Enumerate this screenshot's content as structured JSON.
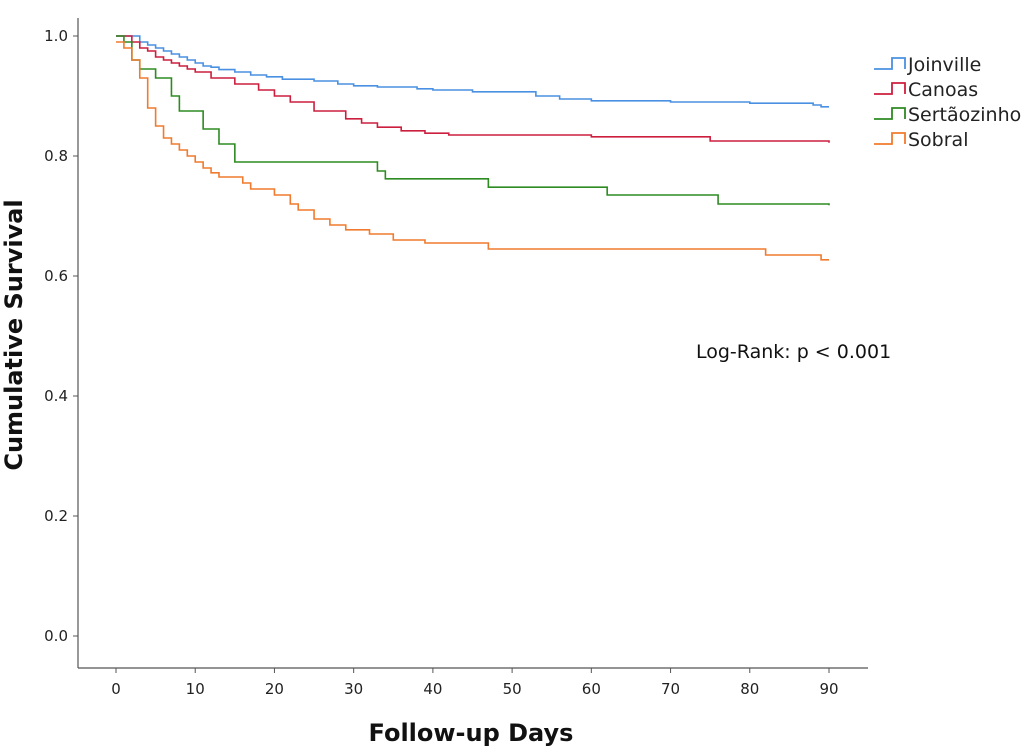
{
  "chart_data": {
    "type": "line",
    "step": true,
    "title": "",
    "xlabel": "Follow-up Days",
    "ylabel": "Cumulative Survival",
    "xlim": [
      -5,
      95
    ],
    "ylim": [
      0,
      1.0
    ],
    "xticks": [
      0,
      10,
      20,
      30,
      40,
      50,
      60,
      70,
      80,
      90
    ],
    "yticks": [
      0.0,
      0.2,
      0.4,
      0.6,
      0.8,
      1.0
    ],
    "xtick_labels": [
      "0",
      "10",
      "20",
      "30",
      "40",
      "50",
      "60",
      "70",
      "80",
      "90"
    ],
    "ytick_labels": [
      "0.0",
      "0.2",
      "0.4",
      "0.6",
      "0.8",
      "1.0"
    ],
    "legend_position": "top-right",
    "annotation": "Log-Rank:  p < 0.001",
    "series": [
      {
        "name": "Joinville",
        "color": "#4a90e2",
        "x": [
          0,
          3,
          4,
          5,
          6,
          7,
          8,
          9,
          10,
          11,
          12,
          13,
          15,
          17,
          19,
          21,
          25,
          28,
          30,
          33,
          38,
          40,
          45,
          53,
          56,
          60,
          70,
          80,
          88,
          89,
          90
        ],
        "y": [
          1.0,
          0.99,
          0.985,
          0.98,
          0.975,
          0.97,
          0.965,
          0.96,
          0.955,
          0.95,
          0.948,
          0.944,
          0.94,
          0.935,
          0.932,
          0.928,
          0.925,
          0.92,
          0.917,
          0.915,
          0.912,
          0.91,
          0.907,
          0.9,
          0.895,
          0.892,
          0.89,
          0.888,
          0.885,
          0.882,
          0.882
        ]
      },
      {
        "name": "Canoas",
        "color": "#cc1f3e",
        "x": [
          0,
          2,
          3,
          4,
          5,
          6,
          7,
          8,
          9,
          10,
          12,
          15,
          18,
          20,
          22,
          25,
          29,
          31,
          33,
          36,
          39,
          42,
          60,
          75,
          90
        ],
        "y": [
          1.0,
          0.99,
          0.98,
          0.975,
          0.965,
          0.96,
          0.955,
          0.95,
          0.945,
          0.94,
          0.93,
          0.92,
          0.91,
          0.9,
          0.89,
          0.875,
          0.862,
          0.855,
          0.848,
          0.842,
          0.838,
          0.835,
          0.832,
          0.825,
          0.822
        ]
      },
      {
        "name": "Sertãozinho",
        "color": "#2e8b22",
        "x": [
          0,
          1,
          2,
          3,
          5,
          7,
          8,
          11,
          13,
          15,
          33,
          34,
          47,
          62,
          76,
          90
        ],
        "y": [
          1.0,
          0.99,
          0.96,
          0.945,
          0.93,
          0.9,
          0.875,
          0.845,
          0.82,
          0.79,
          0.775,
          0.762,
          0.748,
          0.735,
          0.72,
          0.718
        ]
      },
      {
        "name": "Sobral",
        "color": "#f07a2e",
        "x": [
          0,
          1,
          2,
          3,
          4,
          5,
          6,
          7,
          8,
          9,
          10,
          11,
          12,
          13,
          16,
          17,
          20,
          22,
          23,
          25,
          27,
          29,
          32,
          35,
          39,
          47,
          82,
          89,
          90
        ],
        "y": [
          0.99,
          0.98,
          0.96,
          0.93,
          0.88,
          0.85,
          0.83,
          0.82,
          0.81,
          0.8,
          0.79,
          0.78,
          0.772,
          0.765,
          0.755,
          0.745,
          0.735,
          0.72,
          0.71,
          0.695,
          0.685,
          0.677,
          0.67,
          0.66,
          0.655,
          0.645,
          0.635,
          0.627,
          0.627
        ]
      }
    ]
  }
}
